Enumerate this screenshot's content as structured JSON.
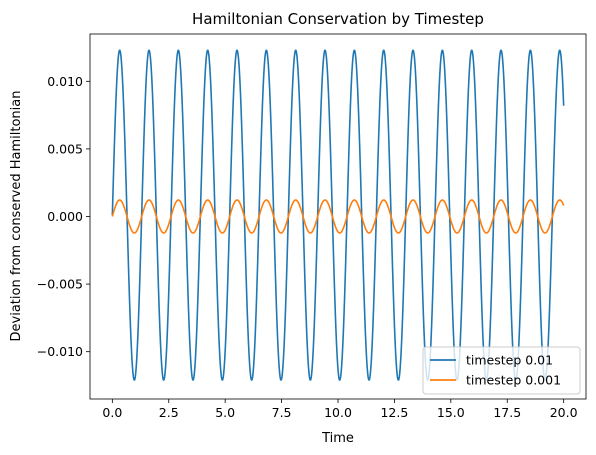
{
  "chart_data": {
    "type": "line",
    "title": "Hamiltonian Conservation by Timestep",
    "xlabel": "Time",
    "ylabel": "Deviation from conserved Hamiltonian",
    "xlim": [
      -0.99,
      20.99
    ],
    "ylim": [
      -0.0135,
      0.0135
    ],
    "xticks": [
      0.0,
      2.5,
      5.0,
      7.5,
      10.0,
      12.5,
      15.0,
      17.5,
      20.0
    ],
    "xtick_labels": [
      "0.0",
      "2.5",
      "5.0",
      "7.5",
      "10.0",
      "12.5",
      "15.0",
      "17.5",
      "20.0"
    ],
    "yticks": [
      -0.01,
      -0.005,
      0.0,
      0.005,
      0.01
    ],
    "ytick_labels": [
      "−0.010",
      "−0.005",
      "0.000",
      "0.005",
      "0.010"
    ],
    "grid": false,
    "legend_position": "lower-right",
    "series": [
      {
        "name": "timestep 0.01",
        "color": "#1f77b4",
        "x_range": [
          0,
          20
        ],
        "form": "y = offset + amplitude * sin(2*pi*x/period)",
        "amplitude": 0.0122,
        "offset": 0.0001,
        "period": 1.3
      },
      {
        "name": "timestep 0.001",
        "color": "#ff7f0e",
        "x_range": [
          0,
          20
        ],
        "form": "y = amplitude * sin(2*pi*x/period)",
        "amplitude": 0.00122,
        "offset": 0,
        "period": 1.3
      }
    ]
  }
}
